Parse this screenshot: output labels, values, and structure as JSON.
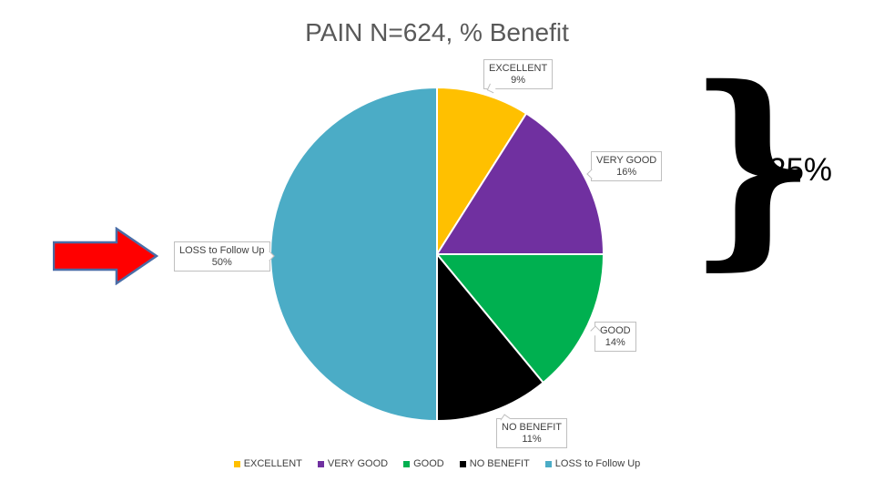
{
  "slide": {
    "title": "PAIN N=624, % Benefit"
  },
  "chart_data": {
    "type": "pie",
    "title": "PAIN N=624, % Benefit",
    "categories": [
      "EXCELLENT",
      "VERY GOOD",
      "GOOD",
      "NO BENEFIT",
      "LOSS to Follow Up"
    ],
    "values": [
      9,
      16,
      14,
      11,
      50
    ],
    "unit": "%",
    "colors": [
      "#FFC000",
      "#7030A0",
      "#00B050",
      "#000000",
      "#4BACC6"
    ],
    "start_angle_deg": 0,
    "direction": "clockwise",
    "legend_position": "bottom",
    "data_labels": [
      {
        "label": "EXCELLENT",
        "value": "9%"
      },
      {
        "label": "VERY GOOD",
        "value": "16%"
      },
      {
        "label": "GOOD",
        "value": "14%"
      },
      {
        "label": "NO BENEFIT",
        "value": "11%"
      },
      {
        "label": "LOSS to Follow Up",
        "value": "50%"
      }
    ]
  },
  "legend": {
    "items": [
      {
        "label": "EXCELLENT",
        "color": "#FFC000"
      },
      {
        "label": "VERY GOOD",
        "color": "#7030A0"
      },
      {
        "label": "GOOD",
        "color": "#00B050"
      },
      {
        "label": "NO BENEFIT",
        "color": "#000000"
      },
      {
        "label": "LOSS to Follow Up",
        "color": "#4BACC6"
      }
    ]
  },
  "annotations": {
    "brace_glyph": "}",
    "brace_value": "25%",
    "arrow": {
      "fill": "#FF0000",
      "stroke": "#4A6DA7"
    }
  }
}
